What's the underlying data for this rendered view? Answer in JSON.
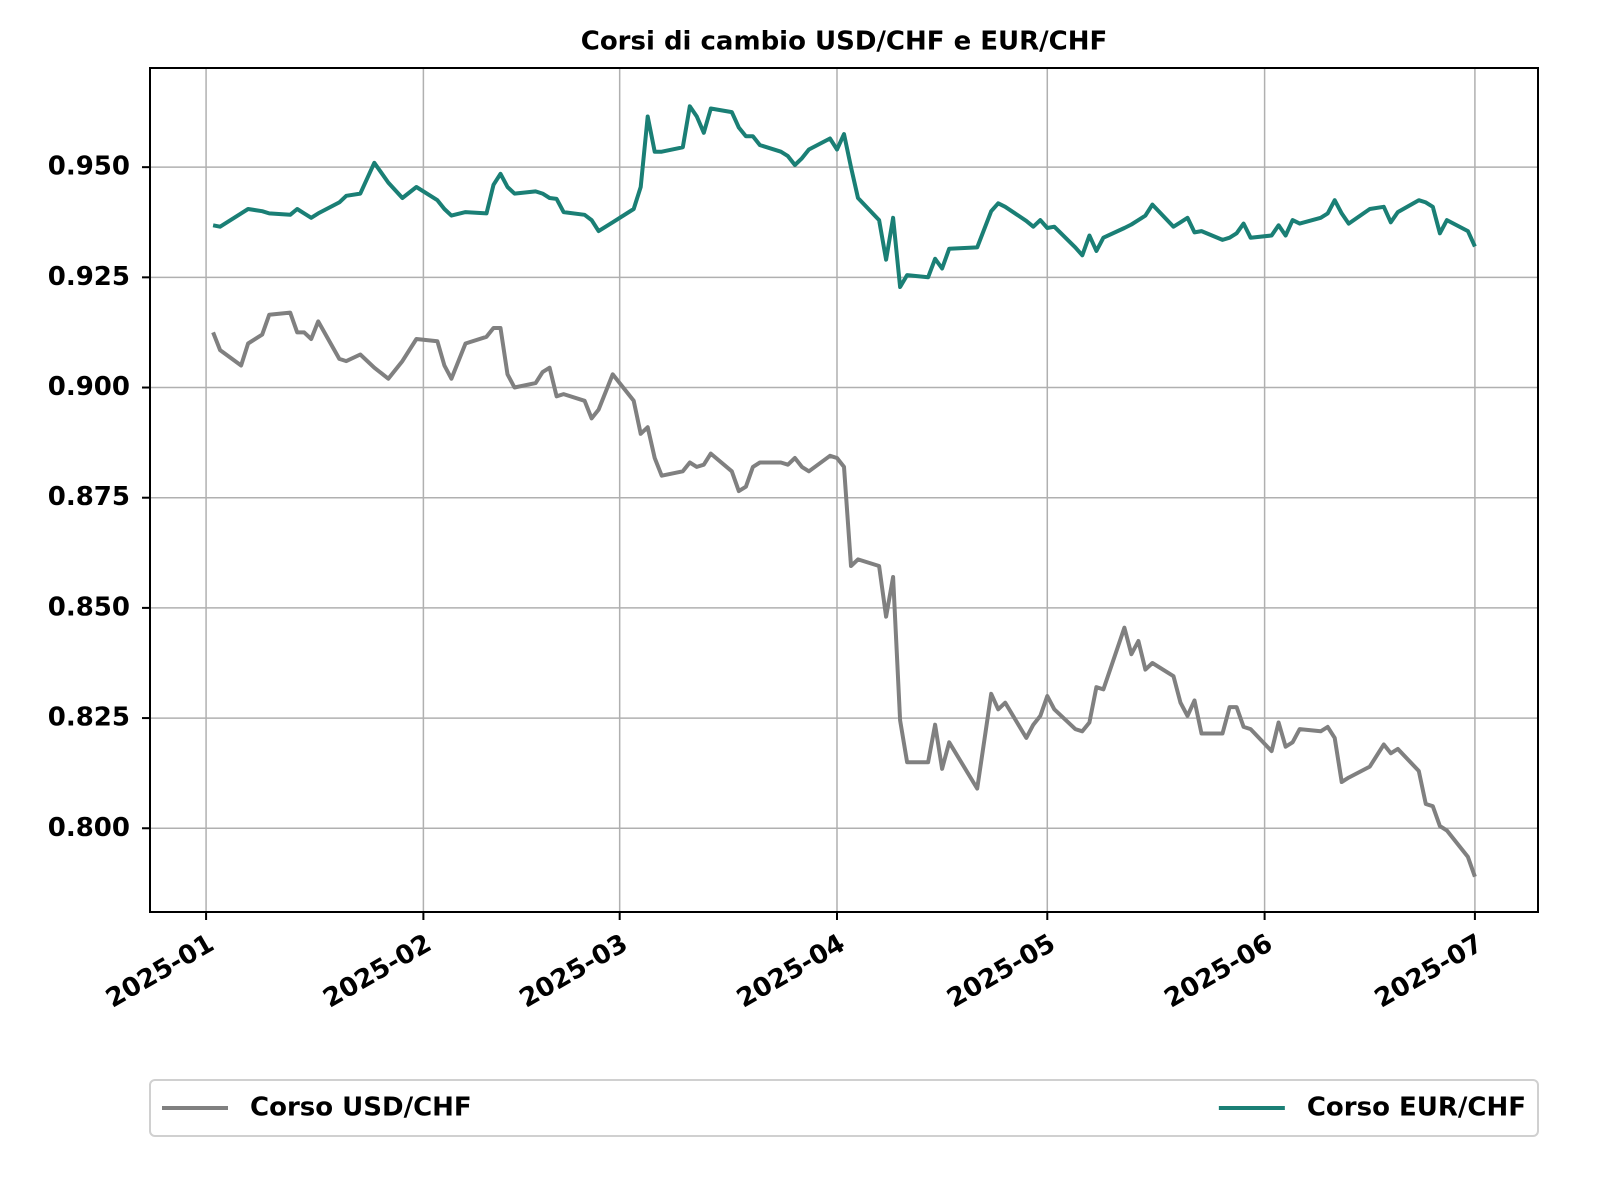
{
  "chart_data": {
    "type": "line",
    "title": "Corsi di cambio USD/CHF e EUR/CHF",
    "x": [
      1,
      2,
      5,
      6,
      8,
      9,
      12,
      13,
      14,
      15,
      16,
      19,
      20,
      22,
      24,
      26,
      28,
      30,
      33,
      34,
      35,
      37,
      40,
      41,
      42,
      43,
      44,
      47,
      48,
      49,
      50,
      51,
      54,
      55,
      56,
      58,
      61,
      62,
      63,
      64,
      65,
      68,
      69,
      70,
      71,
      72,
      75,
      76,
      77,
      78,
      79,
      82,
      83,
      84,
      85,
      86,
      89,
      90,
      91,
      92,
      93,
      96,
      97,
      98,
      99,
      100,
      103,
      104,
      105,
      106,
      110,
      112,
      113,
      114,
      117,
      118,
      119,
      120,
      121,
      124,
      125,
      126,
      127,
      128,
      131,
      132,
      133,
      134,
      135,
      138,
      139,
      140,
      141,
      142,
      145,
      146,
      147,
      148,
      149,
      152,
      153,
      154,
      155,
      156,
      159,
      160,
      161,
      162,
      163,
      166,
      168,
      169,
      170,
      173,
      174,
      175,
      176,
      177,
      180,
      181
    ],
    "series": [
      {
        "name": "Corso USD/CHF",
        "color": "#808080",
        "values": [
          0.9125,
          0.9085,
          0.905,
          0.91,
          0.912,
          0.9165,
          0.917,
          0.9125,
          0.9125,
          0.911,
          0.915,
          0.9065,
          0.906,
          0.9075,
          0.9045,
          0.902,
          0.906,
          0.911,
          0.9105,
          0.905,
          0.902,
          0.91,
          0.9115,
          0.9135,
          0.9135,
          0.903,
          0.9,
          0.901,
          0.9035,
          0.9045,
          0.898,
          0.8985,
          0.897,
          0.893,
          0.895,
          0.903,
          0.897,
          0.8895,
          0.891,
          0.884,
          0.88,
          0.881,
          0.883,
          0.882,
          0.8825,
          0.885,
          0.881,
          0.8765,
          0.8775,
          0.882,
          0.883,
          0.883,
          0.8825,
          0.884,
          0.882,
          0.881,
          0.8845,
          0.884,
          0.882,
          0.8595,
          0.861,
          0.8595,
          0.848,
          0.857,
          0.8245,
          0.815,
          0.815,
          0.8235,
          0.8135,
          0.8195,
          0.809,
          0.8305,
          0.827,
          0.8285,
          0.8205,
          0.8235,
          0.8255,
          0.83,
          0.827,
          0.8225,
          0.822,
          0.824,
          0.832,
          0.8315,
          0.8455,
          0.8395,
          0.8425,
          0.836,
          0.8375,
          0.8345,
          0.8285,
          0.8255,
          0.829,
          0.8215,
          0.8215,
          0.8275,
          0.8275,
          0.823,
          0.8225,
          0.8175,
          0.824,
          0.8185,
          0.8195,
          0.8225,
          0.822,
          0.823,
          0.8205,
          0.8105,
          0.8115,
          0.814,
          0.819,
          0.817,
          0.818,
          0.813,
          0.8055,
          0.805,
          0.8005,
          0.7995,
          0.7935,
          0.789
        ]
      },
      {
        "name": "Corso EUR/CHF",
        "color": "#1a7f75",
        "values": [
          0.9368,
          0.9365,
          0.9395,
          0.9405,
          0.94,
          0.9395,
          0.9392,
          0.9405,
          0.9395,
          0.9385,
          0.9395,
          0.942,
          0.9435,
          0.944,
          0.951,
          0.9465,
          0.943,
          0.9455,
          0.9425,
          0.9405,
          0.939,
          0.9398,
          0.9395,
          0.946,
          0.9485,
          0.9455,
          0.944,
          0.9445,
          0.944,
          0.943,
          0.9428,
          0.9398,
          0.9392,
          0.938,
          0.9355,
          0.9375,
          0.9405,
          0.9455,
          0.9615,
          0.9535,
          0.9535,
          0.9545,
          0.9638,
          0.9615,
          0.9578,
          0.9633,
          0.9625,
          0.959,
          0.957,
          0.957,
          0.955,
          0.9535,
          0.9525,
          0.9505,
          0.952,
          0.954,
          0.9565,
          0.954,
          0.9575,
          0.95,
          0.943,
          0.938,
          0.929,
          0.9385,
          0.9228,
          0.9255,
          0.925,
          0.9292,
          0.927,
          0.9315,
          0.9318,
          0.94,
          0.9418,
          0.941,
          0.9378,
          0.9365,
          0.938,
          0.9362,
          0.9365,
          0.9318,
          0.93,
          0.9345,
          0.931,
          0.934,
          0.9362,
          0.937,
          0.938,
          0.939,
          0.9415,
          0.9365,
          0.9375,
          0.9385,
          0.9352,
          0.9355,
          0.9335,
          0.934,
          0.935,
          0.9372,
          0.934,
          0.9345,
          0.9368,
          0.9345,
          0.938,
          0.9372,
          0.9385,
          0.9395,
          0.9425,
          0.9395,
          0.9372,
          0.9405,
          0.941,
          0.9375,
          0.9398,
          0.9425,
          0.942,
          0.941,
          0.935,
          0.938,
          0.9355,
          0.932
        ]
      }
    ],
    "xlim": [
      -8,
      190
    ],
    "xticks": [
      {
        "value": 0,
        "label": "2025-01"
      },
      {
        "value": 31,
        "label": "2025-02"
      },
      {
        "value": 59,
        "label": "2025-03"
      },
      {
        "value": 90,
        "label": "2025-04"
      },
      {
        "value": 120,
        "label": "2025-05"
      },
      {
        "value": 151,
        "label": "2025-06"
      },
      {
        "value": 181,
        "label": "2025-07"
      }
    ],
    "ylim": [
      0.781,
      0.9725
    ],
    "yticks": [
      {
        "value": 0.8,
        "label": "0.800"
      },
      0.825,
      {
        "value": 0.85,
        "label": "0.850"
      },
      0.875,
      {
        "value": 0.9,
        "label": "0.900"
      },
      0.925,
      {
        "value": 0.95,
        "label": "0.950"
      }
    ],
    "grid": true,
    "legend": "bottom"
  }
}
